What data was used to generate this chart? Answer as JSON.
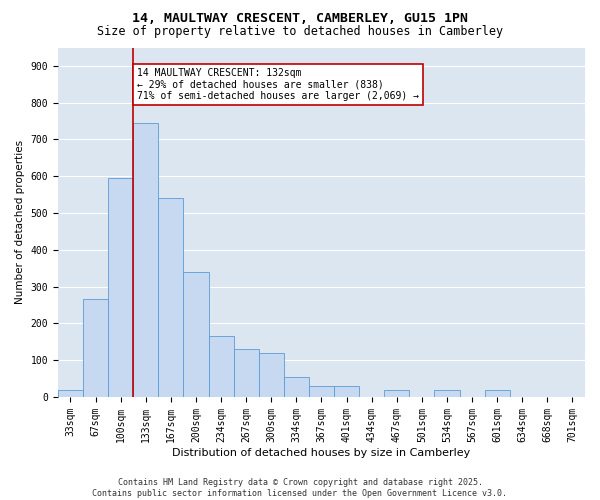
{
  "title": "14, MAULTWAY CRESCENT, CAMBERLEY, GU15 1PN",
  "subtitle": "Size of property relative to detached houses in Camberley",
  "xlabel": "Distribution of detached houses by size in Camberley",
  "ylabel": "Number of detached properties",
  "categories": [
    "33sqm",
    "67sqm",
    "100sqm",
    "133sqm",
    "167sqm",
    "200sqm",
    "234sqm",
    "267sqm",
    "300sqm",
    "334sqm",
    "367sqm",
    "401sqm",
    "434sqm",
    "467sqm",
    "501sqm",
    "534sqm",
    "567sqm",
    "601sqm",
    "634sqm",
    "668sqm",
    "701sqm"
  ],
  "values": [
    20,
    265,
    595,
    745,
    540,
    340,
    165,
    130,
    120,
    55,
    30,
    30,
    0,
    20,
    0,
    20,
    0,
    20,
    0,
    0,
    0
  ],
  "bar_color": "#c6d9f0",
  "bar_edge_color": "#5b9bd5",
  "vline_color": "#c00000",
  "vline_x": 3,
  "annotation_text": "14 MAULTWAY CRESCENT: 132sqm\n← 29% of detached houses are smaller (838)\n71% of semi-detached houses are larger (2,069) →",
  "annotation_box_color": "#c00000",
  "ylim": [
    0,
    950
  ],
  "yticks": [
    0,
    100,
    200,
    300,
    400,
    500,
    600,
    700,
    800,
    900
  ],
  "bg_color": "#dce6f1",
  "grid_color": "#ffffff",
  "footer": "Contains HM Land Registry data © Crown copyright and database right 2025.\nContains public sector information licensed under the Open Government Licence v3.0.",
  "title_fontsize": 9.5,
  "subtitle_fontsize": 8.5,
  "xlabel_fontsize": 8,
  "ylabel_fontsize": 7.5,
  "tick_fontsize": 7,
  "annotation_fontsize": 7,
  "footer_fontsize": 6
}
